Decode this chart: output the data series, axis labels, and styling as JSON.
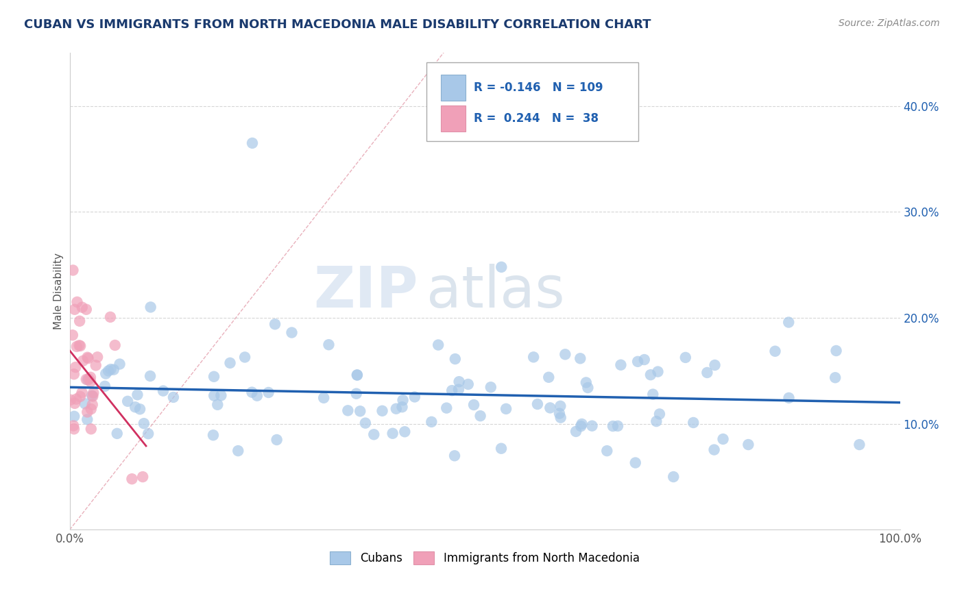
{
  "title": "CUBAN VS IMMIGRANTS FROM NORTH MACEDONIA MALE DISABILITY CORRELATION CHART",
  "source": "Source: ZipAtlas.com",
  "ylabel": "Male Disability",
  "xlim": [
    0,
    1
  ],
  "ylim": [
    0,
    0.45
  ],
  "yticks": [
    0.1,
    0.2,
    0.3,
    0.4
  ],
  "ytick_labels": [
    "10.0%",
    "20.0%",
    "30.0%",
    "40.0%"
  ],
  "color_blue": "#a8c8e8",
  "color_pink": "#f0a0b8",
  "color_blue_line": "#2060b0",
  "color_pink_line": "#d03060",
  "color_diag": "#e090a0",
  "color_legend_text": "#2060b0",
  "background_color": "#ffffff",
  "watermark_zip": "ZIP",
  "watermark_atlas": "atlas",
  "title_color": "#1a3a6e",
  "grid_color": "#cccccc",
  "ytick_color": "#2060b0",
  "xtick_color": "#555555",
  "source_color": "#888888",
  "ylabel_color": "#555555",
  "legend_r1": "R = -0.146",
  "legend_n1": "N = 109",
  "legend_r2": "R =  0.244",
  "legend_n2": "N =  38"
}
